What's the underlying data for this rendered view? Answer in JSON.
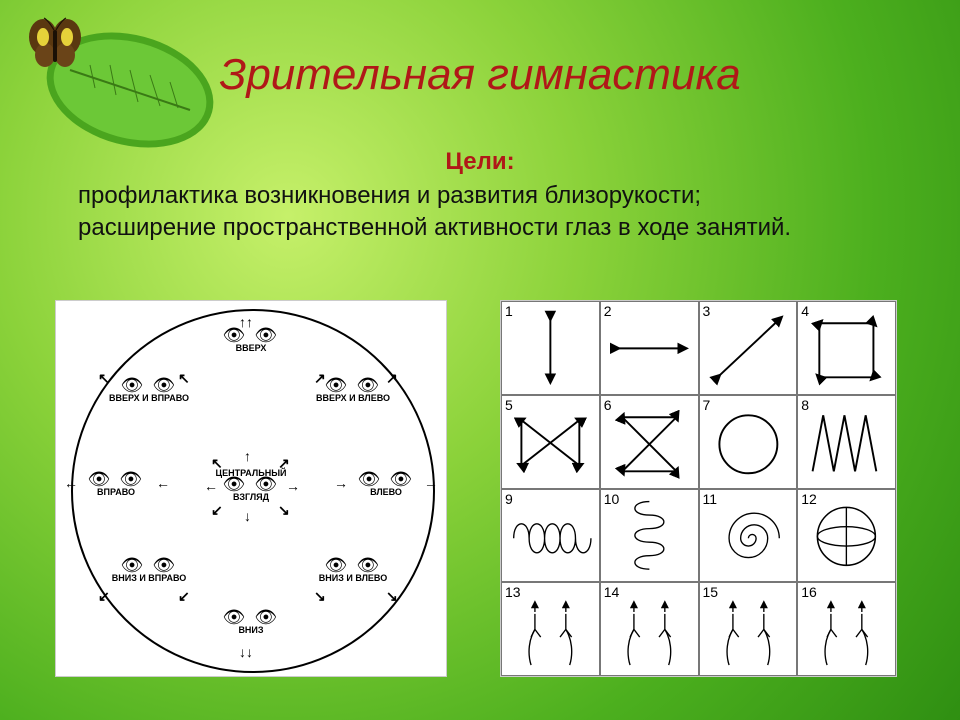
{
  "title": "Зрительная гимнастика",
  "goals_label": "Цели:",
  "goal_1": "профилактика возникновения и развития близорукости;",
  "goal_2": "расширение пространственной активности  глаз в ходе занятий.",
  "colors": {
    "title": "#b01818",
    "text": "#111111",
    "bg_inner": "#c6f06a",
    "bg_mid": "#8bd23a",
    "bg_outer": "#4caf1e",
    "panel_bg": "#ffffff",
    "stroke": "#000000",
    "grid_border": "#777777"
  },
  "eye_directions": [
    {
      "label": "ВВЕРХ",
      "angle": -90
    },
    {
      "label": "ВВЕРХ И ВЛЕВО",
      "angle": -45
    },
    {
      "label": "ВЛЕВО",
      "angle": 0
    },
    {
      "label": "ВНИЗ И ВЛЕВО",
      "angle": 45
    },
    {
      "label": "ВНИЗ",
      "angle": 90
    },
    {
      "label": "ВНИЗ И ВПРАВО",
      "angle": 135
    },
    {
      "label": "ВПРАВО",
      "angle": 180
    },
    {
      "label": "ВВЕРХ И ВПРАВО",
      "angle": -135
    }
  ],
  "center_label_1": "ЦЕНТРАЛЬНЫЙ",
  "center_label_2": "ВЗГЛЯД",
  "grid_cells": [
    {
      "n": 1,
      "type": "vline"
    },
    {
      "n": 2,
      "type": "hline"
    },
    {
      "n": 3,
      "type": "diag"
    },
    {
      "n": 4,
      "type": "square"
    },
    {
      "n": 5,
      "type": "bowtie"
    },
    {
      "n": 6,
      "type": "hourglass"
    },
    {
      "n": 7,
      "type": "circle"
    },
    {
      "n": 8,
      "type": "zigzag"
    },
    {
      "n": 9,
      "type": "spring_h"
    },
    {
      "n": 10,
      "type": "spring_v"
    },
    {
      "n": 11,
      "type": "spiral"
    },
    {
      "n": 12,
      "type": "globe"
    },
    {
      "n": 13,
      "type": "hands"
    },
    {
      "n": 14,
      "type": "hands"
    },
    {
      "n": 15,
      "type": "hands"
    },
    {
      "n": 16,
      "type": "hands"
    }
  ],
  "diagram_style": {
    "line_width": 2,
    "arrow_size": 5,
    "label_fontsize": 9,
    "grid_num_fontsize": 14
  }
}
